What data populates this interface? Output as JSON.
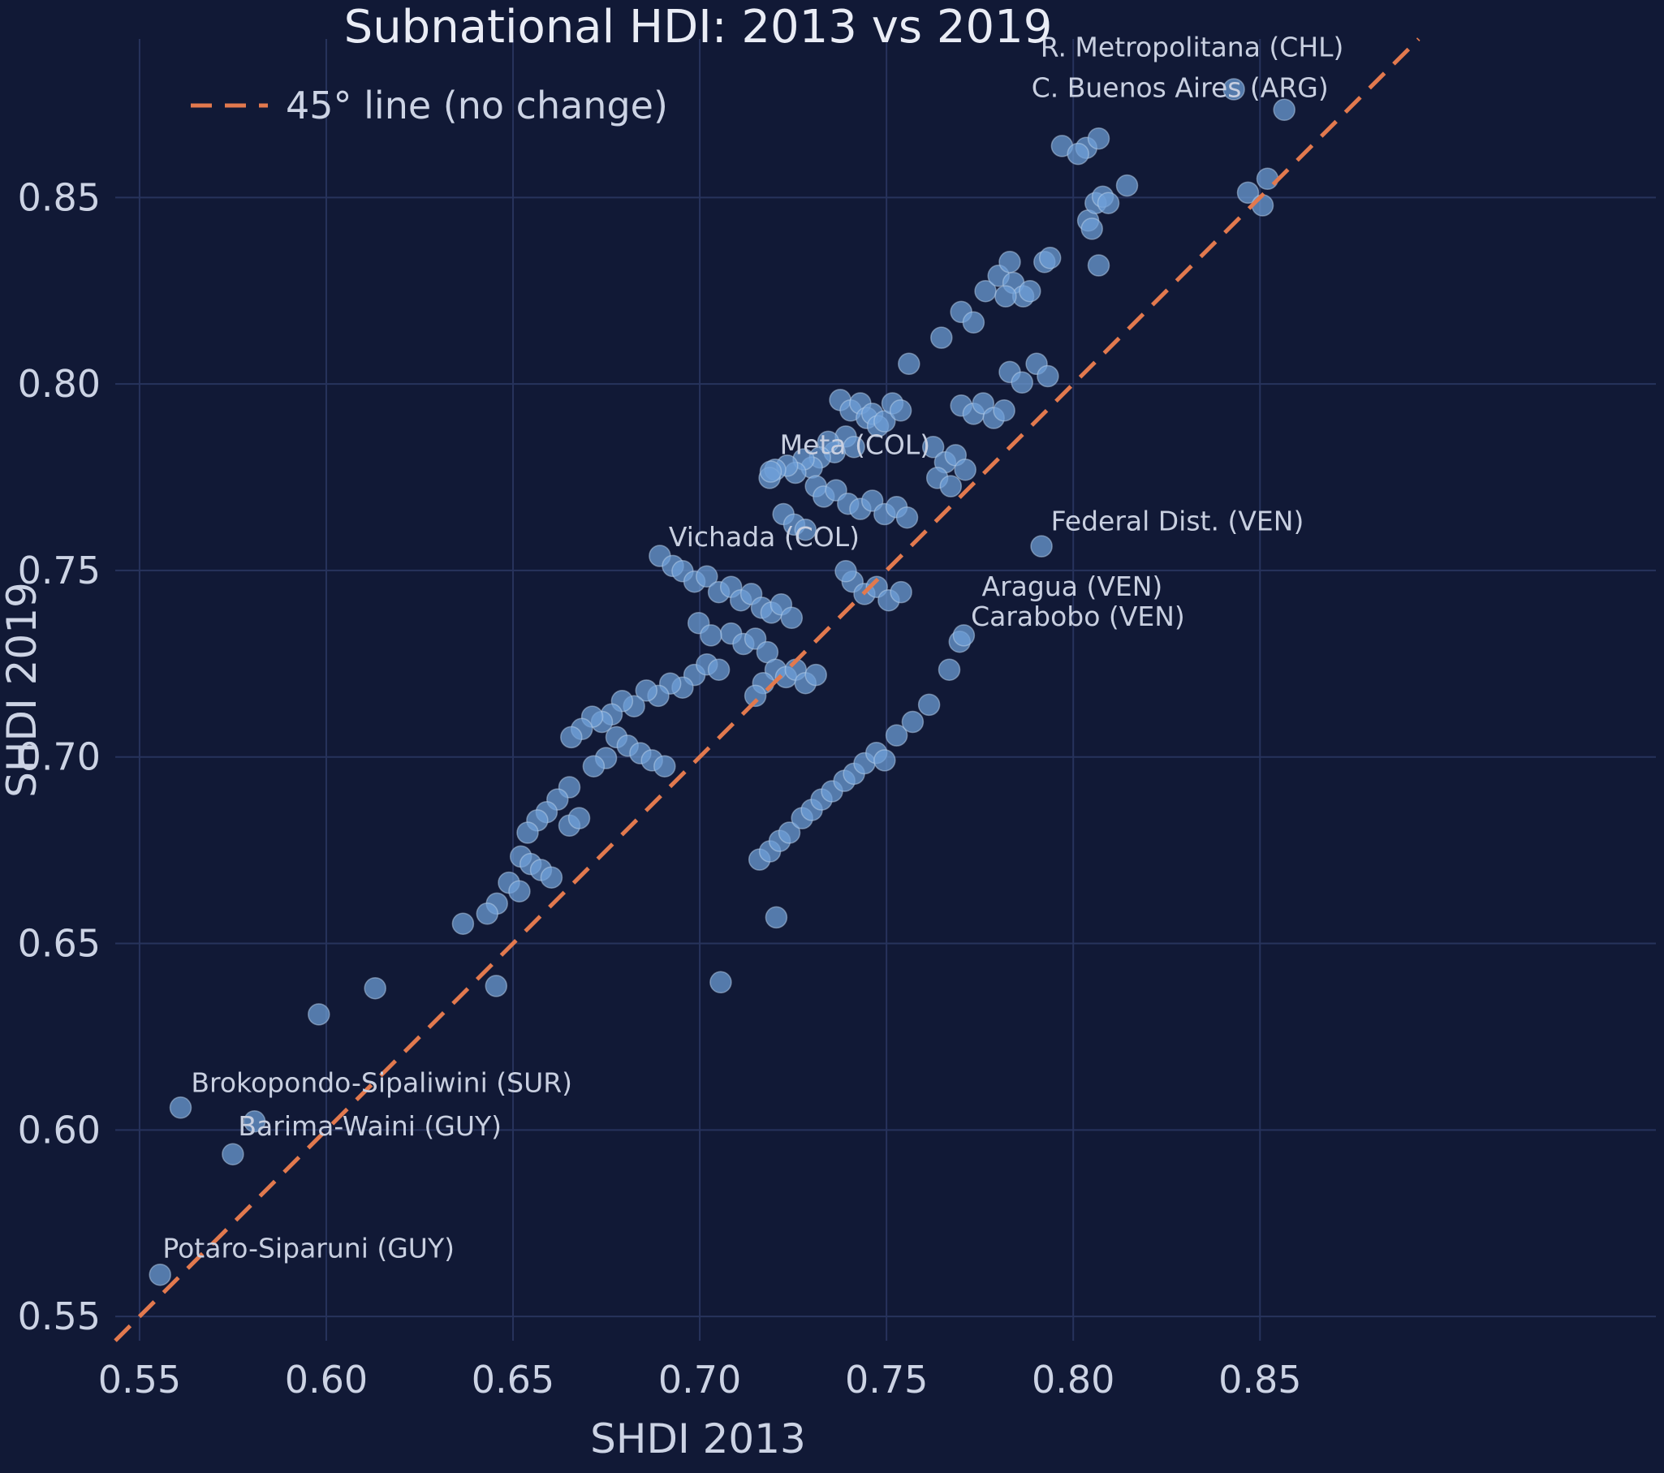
{
  "chart_data": {
    "type": "scatter",
    "title": "Subnational HDI: 2013 vs 2019",
    "xlabel": "SHDI 2013",
    "ylabel": "SHDI 2019",
    "xlim": [
      0.5435,
      0.956
    ],
    "ylim": [
      0.5435,
      0.8925
    ],
    "xticks": [
      0.55,
      0.6,
      0.65,
      0.7,
      0.75,
      0.8,
      0.85
    ],
    "yticks": [
      0.55,
      0.6,
      0.65,
      0.7,
      0.75,
      0.8,
      0.85
    ],
    "grid": true,
    "legend": {
      "label": "45° line (no change)",
      "position": "upper-left"
    },
    "reference_line": {
      "kind": "identity-45-degree",
      "from": 0.5435,
      "to": 0.8925,
      "style": "dashed"
    },
    "colors": {
      "background": "#111936",
      "grid": "#27335c",
      "text": "#ccd3e4",
      "title": "#e9ecf5",
      "point_fill": "#6f9fd8",
      "point_edge": "#b9d2ec",
      "line": "#e2794e",
      "annotation": "#c8cfe0"
    },
    "points": [
      [
        0.5555,
        0.5612
      ],
      [
        0.561,
        0.606
      ],
      [
        0.575,
        0.5935
      ],
      [
        0.5808,
        0.6023
      ],
      [
        0.598,
        0.631
      ],
      [
        0.6131,
        0.638
      ],
      [
        0.6366,
        0.6553
      ],
      [
        0.6455,
        0.6386
      ],
      [
        0.7056,
        0.6396
      ],
      [
        0.7205,
        0.657
      ],
      [
        0.6651,
        0.6919
      ],
      [
        0.6619,
        0.6886
      ],
      [
        0.659,
        0.6852
      ],
      [
        0.6565,
        0.683
      ],
      [
        0.6539,
        0.6797
      ],
      [
        0.6651,
        0.6816
      ],
      [
        0.6677,
        0.6836
      ],
      [
        0.6521,
        0.6733
      ],
      [
        0.6547,
        0.6713
      ],
      [
        0.6575,
        0.6697
      ],
      [
        0.6603,
        0.6677
      ],
      [
        0.6489,
        0.6663
      ],
      [
        0.6517,
        0.664
      ],
      [
        0.6457,
        0.6607
      ],
      [
        0.6431,
        0.658
      ],
      [
        0.6986,
        0.722
      ],
      [
        0.6954,
        0.7186
      ],
      [
        0.6921,
        0.7197
      ],
      [
        0.6889,
        0.7164
      ],
      [
        0.6857,
        0.7178
      ],
      [
        0.6824,
        0.7136
      ],
      [
        0.6792,
        0.715
      ],
      [
        0.6764,
        0.7114
      ],
      [
        0.6738,
        0.7094
      ],
      [
        0.6712,
        0.7108
      ],
      [
        0.6684,
        0.7075
      ],
      [
        0.6656,
        0.7053
      ],
      [
        0.7019,
        0.7248
      ],
      [
        0.7051,
        0.7234
      ],
      [
        0.6777,
        0.7053
      ],
      [
        0.6807,
        0.703
      ],
      [
        0.6841,
        0.701
      ],
      [
        0.6872,
        0.6991
      ],
      [
        0.6906,
        0.6975
      ],
      [
        0.6749,
        0.6997
      ],
      [
        0.6716,
        0.6975
      ],
      [
        0.6893,
        0.7539
      ],
      [
        0.6928,
        0.7512
      ],
      [
        0.6954,
        0.7498
      ],
      [
        0.6986,
        0.747
      ],
      [
        0.7019,
        0.7484
      ],
      [
        0.7051,
        0.7442
      ],
      [
        0.7084,
        0.7456
      ],
      [
        0.711,
        0.742
      ],
      [
        0.7138,
        0.7437
      ],
      [
        0.7166,
        0.74
      ],
      [
        0.7192,
        0.7387
      ],
      [
        0.7218,
        0.7409
      ],
      [
        0.7246,
        0.7373
      ],
      [
        0.7084,
        0.7331
      ],
      [
        0.7117,
        0.7303
      ],
      [
        0.7149,
        0.7317
      ],
      [
        0.7181,
        0.7281
      ],
      [
        0.6997,
        0.7359
      ],
      [
        0.703,
        0.7326
      ],
      [
        0.7203,
        0.7234
      ],
      [
        0.7231,
        0.7214
      ],
      [
        0.7257,
        0.7234
      ],
      [
        0.7283,
        0.7198
      ],
      [
        0.7311,
        0.722
      ],
      [
        0.717,
        0.7198
      ],
      [
        0.7149,
        0.7164
      ],
      [
        0.7409,
        0.747
      ],
      [
        0.7441,
        0.7437
      ],
      [
        0.7474,
        0.7456
      ],
      [
        0.7506,
        0.742
      ],
      [
        0.7539,
        0.7442
      ],
      [
        0.7391,
        0.7498
      ],
      [
        0.7376,
        0.7957
      ],
      [
        0.7404,
        0.7929
      ],
      [
        0.743,
        0.7948
      ],
      [
        0.7447,
        0.7909
      ],
      [
        0.7462,
        0.792
      ],
      [
        0.7477,
        0.7887
      ],
      [
        0.7495,
        0.79
      ],
      [
        0.7516,
        0.7948
      ],
      [
        0.7538,
        0.7929
      ],
      [
        0.7391,
        0.7859
      ],
      [
        0.7413,
        0.7831
      ],
      [
        0.7361,
        0.7817
      ],
      [
        0.7344,
        0.7845
      ],
      [
        0.7322,
        0.7803
      ],
      [
        0.73,
        0.7776
      ],
      [
        0.7278,
        0.7798
      ],
      [
        0.7256,
        0.7762
      ],
      [
        0.7234,
        0.7781
      ],
      [
        0.7202,
        0.777
      ],
      [
        0.7187,
        0.7748
      ],
      [
        0.7311,
        0.7726
      ],
      [
        0.7332,
        0.7698
      ],
      [
        0.7365,
        0.7715
      ],
      [
        0.7397,
        0.7679
      ],
      [
        0.743,
        0.7665
      ],
      [
        0.7462,
        0.7687
      ],
      [
        0.7495,
        0.7651
      ],
      [
        0.7527,
        0.767
      ],
      [
        0.7555,
        0.7642
      ],
      [
        0.7224,
        0.7651
      ],
      [
        0.7253,
        0.7623
      ],
      [
        0.7283,
        0.7609
      ],
      [
        0.719,
        0.7765
      ],
      [
        0.7625,
        0.7831
      ],
      [
        0.7657,
        0.779
      ],
      [
        0.7685,
        0.7809
      ],
      [
        0.7711,
        0.777
      ],
      [
        0.7636,
        0.7748
      ],
      [
        0.7672,
        0.7726
      ],
      [
        0.77,
        0.7942
      ],
      [
        0.7733,
        0.792
      ],
      [
        0.7759,
        0.7948
      ],
      [
        0.7787,
        0.7909
      ],
      [
        0.7815,
        0.7929
      ],
      [
        0.783,
        0.8032
      ],
      [
        0.7863,
        0.8004
      ],
      [
        0.7902,
        0.8054
      ],
      [
        0.7932,
        0.8021
      ],
      [
        0.7647,
        0.8124
      ],
      [
        0.77,
        0.8193
      ],
      [
        0.7733,
        0.8165
      ],
      [
        0.7765,
        0.8249
      ],
      [
        0.78,
        0.829
      ],
      [
        0.783,
        0.8327
      ],
      [
        0.784,
        0.8271
      ],
      [
        0.7866,
        0.8235
      ],
      [
        0.7884,
        0.8249
      ],
      [
        0.7923,
        0.8327
      ],
      [
        0.7938,
        0.8338
      ],
      [
        0.7819,
        0.8235
      ],
      [
        0.756,
        0.8054
      ],
      [
        0.797,
        0.8638
      ],
      [
        0.8035,
        0.8633
      ],
      [
        0.8068,
        0.8658
      ],
      [
        0.804,
        0.8438
      ],
      [
        0.806,
        0.8485
      ],
      [
        0.8079,
        0.8502
      ],
      [
        0.8094,
        0.8485
      ],
      [
        0.8144,
        0.8532
      ],
      [
        0.805,
        0.8416
      ],
      [
        0.8013,
        0.8617
      ],
      [
        0.8468,
        0.8513
      ],
      [
        0.8507,
        0.8479
      ],
      [
        0.852,
        0.855
      ],
      [
        0.843,
        0.879
      ],
      [
        0.8565,
        0.8735
      ],
      [
        0.8068,
        0.8318
      ],
      [
        0.716,
        0.6725
      ],
      [
        0.7188,
        0.6747
      ],
      [
        0.7214,
        0.6775
      ],
      [
        0.724,
        0.6797
      ],
      [
        0.7274,
        0.6836
      ],
      [
        0.73,
        0.6858
      ],
      [
        0.7326,
        0.6886
      ],
      [
        0.7354,
        0.6908
      ],
      [
        0.7387,
        0.6936
      ],
      [
        0.7413,
        0.6955
      ],
      [
        0.7441,
        0.6983
      ],
      [
        0.7473,
        0.7011
      ],
      [
        0.7495,
        0.6991
      ],
      [
        0.7527,
        0.7058
      ],
      [
        0.757,
        0.7094
      ],
      [
        0.7614,
        0.714
      ],
      [
        0.7668,
        0.7234
      ],
      [
        0.7696,
        0.7309
      ],
      [
        0.7707,
        0.7326
      ],
      [
        0.7915,
        0.7565
      ]
    ],
    "annotations": [
      {
        "label": "R. Metropolitana (CHL)",
        "x": 0.7912,
        "y": 0.8878
      },
      {
        "label": "C. Buenos Aires (ARG)",
        "x": 0.7888,
        "y": 0.8769
      },
      {
        "label": "Federal Dist. (VEN)",
        "x": 0.794,
        "y": 0.7608
      },
      {
        "label": "Aragua (VEN)",
        "x": 0.7755,
        "y": 0.7432
      },
      {
        "label": "Carabobo (VEN)",
        "x": 0.7726,
        "y": 0.7352
      },
      {
        "label": "Meta (COL)",
        "x": 0.7214,
        "y": 0.7812
      },
      {
        "label": "Vichada (COL)",
        "x": 0.6917,
        "y": 0.7565
      },
      {
        "label": "Brokopondo-Sipaliwini (SUR)",
        "x": 0.5638,
        "y": 0.6102
      },
      {
        "label": "Barima-Waini (GUY)",
        "x": 0.5764,
        "y": 0.5985
      },
      {
        "label": "Potaro-Siparuni (GUY)",
        "x": 0.5562,
        "y": 0.5658
      }
    ]
  }
}
